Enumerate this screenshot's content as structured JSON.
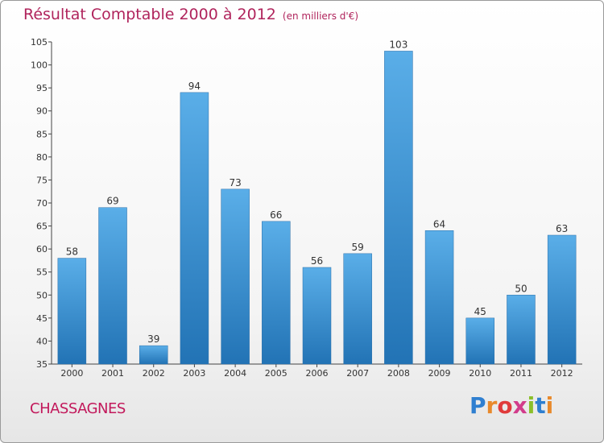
{
  "title": "Résultat Comptable 2000 à 2012",
  "unit": "(en milliers d'€)",
  "commune": "CHASSAGNES",
  "logo": {
    "text": "Proxiti",
    "colors": [
      "#2f7fd0",
      "#e8892b",
      "#e03a3a",
      "#d23c8b",
      "#8bbf2a",
      "#2f7fd0",
      "#e8892b"
    ]
  },
  "colors": {
    "title": "#b0245c",
    "bar_top": "#5aaee8",
    "bar_bottom": "#2273b5",
    "axis": "#444444"
  },
  "chart_data": {
    "type": "bar",
    "title": "Résultat Comptable 2000 à 2012",
    "xlabel": "",
    "ylabel": "",
    "ylim": [
      35,
      105
    ],
    "yticks": [
      35,
      40,
      45,
      50,
      55,
      60,
      65,
      70,
      75,
      80,
      85,
      90,
      95,
      100,
      105
    ],
    "grid": false,
    "categories": [
      "2000",
      "2001",
      "2002",
      "2003",
      "2004",
      "2005",
      "2006",
      "2007",
      "2008",
      "2009",
      "2010",
      "2011",
      "2012"
    ],
    "values": [
      58,
      69,
      39,
      94,
      73,
      66,
      56,
      59,
      103,
      64,
      45,
      50,
      63
    ]
  }
}
